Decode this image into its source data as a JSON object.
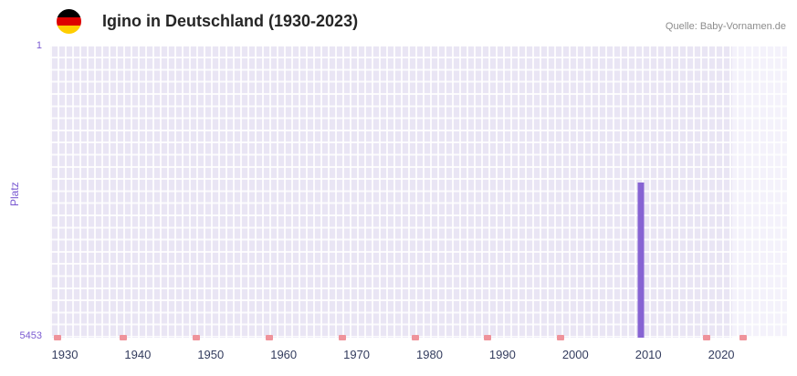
{
  "header": {
    "flag_icon": "german-flag",
    "flag_colors": [
      "#000000",
      "#dd0000",
      "#ffce00"
    ],
    "title": "Igino in Deutschland (1930-2023)",
    "source": "Quelle: Baby-Vornamen.de"
  },
  "chart_data": {
    "type": "bar",
    "title": "Igino in Deutschland (1930-2023)",
    "xlabel": "",
    "ylabel": "Platz",
    "legend": false,
    "grid": true,
    "y_axis": {
      "min": 1,
      "max": 5453,
      "inverted": true,
      "top_tick": "1",
      "bottom_tick": "5453"
    },
    "x_axis": {
      "domain": [
        1928,
        2029
      ],
      "tick_labels": [
        "1930",
        "1940",
        "1950",
        "1960",
        "1970",
        "1980",
        "1990",
        "2000",
        "2010",
        "2020"
      ]
    },
    "series": [
      {
        "name": "Platz",
        "points": [
          {
            "year": 2009,
            "rank": 2560
          }
        ]
      }
    ],
    "no_rank_marker_years": [
      1929,
      1938,
      1948,
      1958,
      1968,
      1978,
      1988,
      1998,
      2018,
      2023
    ],
    "recent_years_band": {
      "from_year": 2021.5,
      "to_year": 2029
    },
    "colors": {
      "bar": "#8663d3",
      "marker": "#ef939b",
      "plot_bg": "#e9e5f4",
      "band_bg": "#f4f2fb",
      "grid": "rgba(255,255,255,0.85)",
      "axis_line": "#8d83cc",
      "y_text": "#7a5ad1",
      "x_text": "#333c5e"
    }
  }
}
